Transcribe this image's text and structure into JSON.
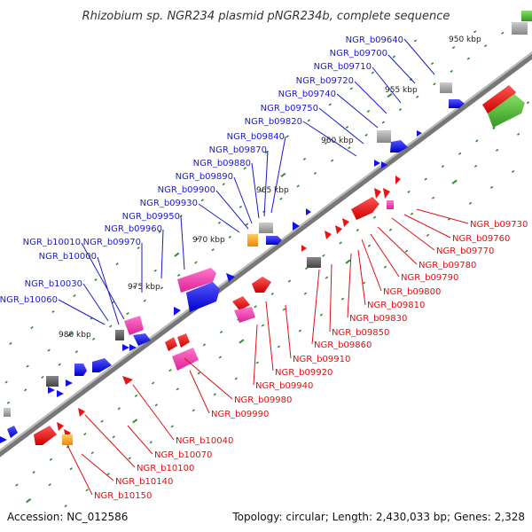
{
  "title": "Rhizobium sp. NGR234 plasmid pNGR234b, complete sequence",
  "footer": {
    "accession": "Accession: NC_012586",
    "summary": "Topology: circular; Length: 2,430,033 bp; Genes: 2,328"
  },
  "colors": {
    "backbone": "#888888",
    "forward_label": "#1a1acc",
    "reverse_label": "#dd1111",
    "tick": "#2e8b2e",
    "blue": "#1111ee",
    "red": "#ee1111",
    "gray": "#999999",
    "pink": "#ee44aa",
    "orange": "#ffaa22",
    "green": "#55bb33"
  },
  "kbp_markers": [
    "950 kbp",
    "955 kbp",
    "960 kbp",
    "965 kbp",
    "970 kbp",
    "975 kbp",
    "980 kbp"
  ],
  "forward_genes": [
    "NGR_b09640",
    "NGR_b09700",
    "NGR_b09710",
    "NGR_b09720",
    "NGR_b09740",
    "NGR_b09750",
    "NGR_b09820",
    "NGR_b09840",
    "NGR_b09870",
    "NGR_b09880",
    "NGR_b09890",
    "NGR_b09900",
    "NGR_b09930",
    "NGR_b09950",
    "NGR_b09960",
    "NGR_b10010",
    "NGR_b09970",
    "NGR_b10000",
    "NGR_b10030",
    "NGR_b10060"
  ],
  "reverse_genes": [
    "NGR_b09730",
    "NGR_b09760",
    "NGR_b09770",
    "NGR_b09780",
    "NGR_b09790",
    "NGR_b09800",
    "NGR_b09810",
    "NGR_b09830",
    "NGR_b09850",
    "NGR_b09860",
    "NGR_b09910",
    "NGR_b09920",
    "NGR_b09940",
    "NGR_b09980",
    "NGR_b09990",
    "NGR_b10040",
    "NGR_b10070",
    "NGR_b10100",
    "NGR_b10140",
    "NGR_b10150"
  ]
}
